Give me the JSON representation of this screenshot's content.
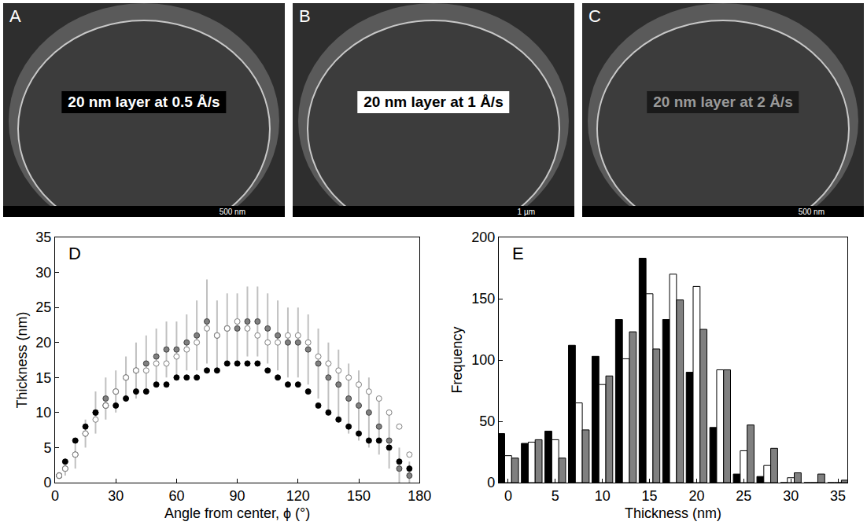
{
  "images": [
    {
      "panel": "A",
      "text": "20 nm layer at  0.5 Å/s",
      "scale_bar": "500 nm"
    },
    {
      "panel": "B",
      "text": "20 nm layer at  1 Å/s",
      "scale_bar": "1 µm"
    },
    {
      "panel": "C",
      "text": "20 nm layer at  2 Å/s",
      "scale_bar": "500 nm"
    }
  ],
  "chart_data": [
    {
      "panel": "D",
      "type": "scatter",
      "x_label": "Angle from center, ϕ (°)",
      "y_label": "Thickness (nm)",
      "xlim": [
        0,
        180
      ],
      "xticks": [
        0,
        30,
        60,
        90,
        120,
        150,
        180
      ],
      "ylim": [
        0,
        35
      ],
      "yticks": [
        0,
        5,
        10,
        15,
        20,
        25,
        30,
        35
      ],
      "grid": false,
      "x": [
        2,
        5,
        10,
        15,
        20,
        25,
        30,
        35,
        40,
        45,
        50,
        55,
        60,
        65,
        70,
        75,
        80,
        85,
        90,
        95,
        100,
        105,
        110,
        115,
        120,
        125,
        130,
        135,
        140,
        145,
        150,
        155,
        160,
        165,
        170,
        175
      ],
      "series": [
        {
          "color": "#000000",
          "marker": "circle",
          "values": [
            1,
            3,
            6,
            8,
            10,
            11,
            11,
            12,
            13,
            13,
            14,
            14,
            15,
            15,
            15,
            16,
            16,
            17,
            17,
            17,
            17,
            16,
            15,
            14,
            14,
            13,
            11,
            10,
            9,
            8,
            7,
            6,
            6,
            5,
            3,
            2
          ]
        },
        {
          "color": "#808080",
          "marker": "circle",
          "values": [
            1,
            2,
            4,
            7,
            10,
            12,
            13,
            15,
            16,
            17,
            18,
            19,
            19,
            20,
            21,
            23,
            21,
            22,
            22,
            23,
            23,
            22,
            21,
            20,
            20,
            19,
            17,
            15,
            14,
            12,
            11,
            10,
            8,
            6,
            2,
            1
          ],
          "error": [
            0.5,
            1,
            2,
            2,
            3,
            3,
            3,
            3,
            4,
            4,
            4,
            4,
            4,
            4,
            5,
            6,
            5,
            5,
            5,
            5,
            5,
            5,
            5,
            5,
            5,
            5,
            5,
            5,
            5,
            5,
            5,
            5,
            4,
            4,
            3,
            2
          ]
        },
        {
          "color": "#ffffff",
          "marker": "circle",
          "values": [
            1,
            2,
            4,
            7,
            9,
            11,
            13,
            15,
            16,
            16,
            17,
            17,
            18,
            19,
            20,
            22,
            21,
            22,
            23,
            22,
            21,
            20,
            20,
            21,
            21,
            20,
            18,
            17,
            16,
            15,
            14,
            13,
            12,
            10,
            8,
            4
          ]
        }
      ]
    },
    {
      "panel": "E",
      "type": "histogram",
      "x_label": "Thickness (nm)",
      "y_label": "Frequency",
      "xlim": [
        -1,
        36
      ],
      "xticks": [
        0,
        5,
        10,
        15,
        20,
        25,
        30,
        35
      ],
      "ylim": [
        0,
        200
      ],
      "yticks": [
        0,
        50,
        100,
        150,
        200
      ],
      "grid": false,
      "bins": [
        -1.25,
        1.25,
        3.75,
        6.25,
        8.75,
        11.25,
        13.75,
        16.25,
        18.75,
        21.25,
        23.75,
        26.25,
        28.75,
        31.25,
        33.75,
        36.25
      ],
      "series": [
        {
          "color": "#000000",
          "values": [
            40,
            32,
            42,
            112,
            103,
            133,
            183,
            133,
            90,
            45,
            7,
            5,
            0,
            0,
            0
          ]
        },
        {
          "color": "#ffffff",
          "values": [
            22,
            33,
            35,
            65,
            80,
            101,
            154,
            170,
            160,
            92,
            26,
            14,
            4,
            0,
            0
          ]
        },
        {
          "color": "#808080",
          "values": [
            20,
            35,
            20,
            43,
            87,
            123,
            109,
            149,
            125,
            92,
            47,
            28,
            8,
            7,
            2
          ]
        }
      ]
    }
  ]
}
